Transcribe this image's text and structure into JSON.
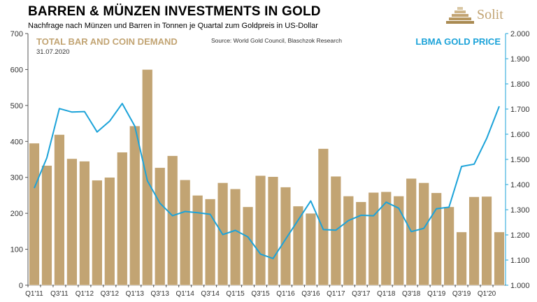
{
  "header": {
    "title": "BARREN & MÜNZEN INVESTMENTS IN GOLD",
    "subtitle": "Nachfrage nach Münzen und Barren in Tonnen je Quartal zum Goldpreis in US-Dollar"
  },
  "logo": {
    "name": "Solit",
    "icon": "stepped-pyramid-icon"
  },
  "annotations": {
    "left_series": "TOTAL BAR AND COIN DEMAND",
    "date": "31.07.2020",
    "source": "Source: World Gold Council, Blaschzok Research",
    "right_series": "LBMA GOLD PRICE"
  },
  "colors": {
    "bars": "#c2a473",
    "line": "#1ca3d9",
    "bar_outline": "#ffffff"
  },
  "chart_data": {
    "type": "bar+line",
    "title": "BARREN & MÜNZEN INVESTMENTS IN GOLD",
    "subtitle": "Nachfrage nach Münzen und Barren in Tonnen je Quartal zum Goldpreis in US-Dollar",
    "categories": [
      "Q1'11",
      "Q2'11",
      "Q3'11",
      "Q4'11",
      "Q1'12",
      "Q2'12",
      "Q3'12",
      "Q4'12",
      "Q1'13",
      "Q2'13",
      "Q3'13",
      "Q4'13",
      "Q1'14",
      "Q2'14",
      "Q3'14",
      "Q4'14",
      "Q1'15",
      "Q2'15",
      "Q3'15",
      "Q4'15",
      "Q1'16",
      "Q2'16",
      "Q3'16",
      "Q4'16",
      "Q1'17",
      "Q2'17",
      "Q3'17",
      "Q4'17",
      "Q1'18",
      "Q2'18",
      "Q3'18",
      "Q4'18",
      "Q1'19",
      "Q2'19",
      "Q3'19",
      "Q4'19",
      "Q1'20",
      "Q2'20"
    ],
    "x_tick_labels": [
      "Q1'11",
      "Q3'11",
      "Q1'12",
      "Q3'12",
      "Q1'13",
      "Q3'13",
      "Q1'14",
      "Q3'14",
      "Q1'15",
      "Q3'15",
      "Q1'16",
      "Q3'16",
      "Q1'17",
      "Q3'17",
      "Q1'18",
      "Q3'18",
      "Q1'19",
      "Q3'19",
      "Q1'20"
    ],
    "series": [
      {
        "name": "TOTAL BAR AND COIN DEMAND",
        "type": "bar",
        "axis": "left",
        "values": [
          395,
          333,
          419,
          352,
          345,
          292,
          300,
          370,
          443,
          600,
          327,
          360,
          293,
          250,
          240,
          285,
          268,
          218,
          305,
          302,
          273,
          220,
          200,
          380,
          303,
          248,
          232,
          258,
          260,
          248,
          297,
          285,
          257,
          218,
          148,
          246,
          247,
          148
        ]
      },
      {
        "name": "LBMA GOLD PRICE",
        "type": "line",
        "axis": "right",
        "values": [
          1386,
          1506,
          1702,
          1688,
          1690,
          1609,
          1652,
          1722,
          1632,
          1415,
          1326,
          1276,
          1293,
          1288,
          1282,
          1201,
          1218,
          1192,
          1124,
          1106,
          1183,
          1259,
          1335,
          1221,
          1219,
          1257,
          1278,
          1276,
          1330,
          1306,
          1213,
          1226,
          1304,
          1310,
          1472,
          1481,
          1583,
          1711
        ]
      }
    ],
    "y_left": {
      "min": 0,
      "max": 700,
      "ticks": [
        "0",
        "100",
        "200",
        "300",
        "400",
        "500",
        "600",
        "700"
      ]
    },
    "y_right": {
      "min": 1000,
      "max": 2000,
      "ticks": [
        "1.000",
        "1.100",
        "1.200",
        "1.300",
        "1.400",
        "1.500",
        "1.600",
        "1.700",
        "1.800",
        "1.900",
        "2.000"
      ]
    },
    "grid": false,
    "legend": "none"
  }
}
